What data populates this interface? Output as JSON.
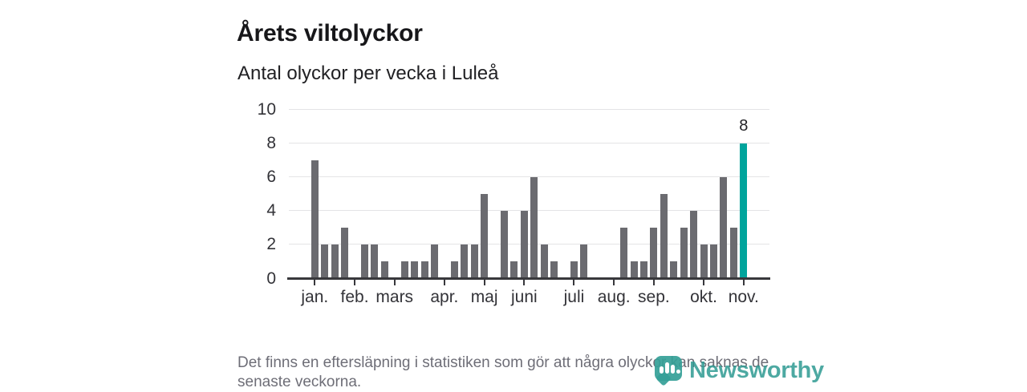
{
  "header": {
    "title": "Årets viltolyckor",
    "subtitle": "Antal olyckor per vecka i Luleå"
  },
  "chart_data": {
    "type": "bar",
    "title": "Årets viltolyckor",
    "subtitle": "Antal olyckor per vecka i Luleå",
    "x_unit": "week of the year, January–November",
    "n_weeks": 44,
    "values": [
      7,
      2,
      2,
      3,
      0,
      2,
      2,
      1,
      0,
      1,
      1,
      1,
      2,
      0,
      1,
      2,
      2,
      5,
      0,
      4,
      1,
      4,
      6,
      2,
      1,
      0,
      1,
      2,
      0,
      0,
      0,
      3,
      1,
      1,
      3,
      5,
      1,
      3,
      4,
      2,
      2,
      6,
      3,
      8
    ],
    "highlight_index": 43,
    "highlight_value_label": "8",
    "x_tick_labels": [
      {
        "week_index": 0,
        "label": "jan."
      },
      {
        "week_index": 4,
        "label": "feb."
      },
      {
        "week_index": 8,
        "label": "mars"
      },
      {
        "week_index": 13,
        "label": "apr."
      },
      {
        "week_index": 17,
        "label": "maj"
      },
      {
        "week_index": 21,
        "label": "juni"
      },
      {
        "week_index": 26,
        "label": "juli"
      },
      {
        "week_index": 30,
        "label": "aug."
      },
      {
        "week_index": 34,
        "label": "sep."
      },
      {
        "week_index": 39,
        "label": "okt."
      },
      {
        "week_index": 43,
        "label": "nov."
      }
    ],
    "y_ticks": [
      0,
      2,
      4,
      6,
      8,
      10
    ],
    "ylim": [
      0,
      10
    ],
    "grid": true,
    "legend": "none",
    "bar_color": "#6b6b70",
    "highlight_color": "#00a49c"
  },
  "footer": {
    "note_line1": "Det finns en eftersläpning i statistiken som gör att några olyckor kan saknas de",
    "note_line2": "senaste veckorna.",
    "brand": "Newsworthy"
  },
  "colors": {
    "accent_teal": "#00a49c",
    "bar_gray": "#6b6b70",
    "text_dark": "#17171a",
    "text_muted": "#6e6e77",
    "gridline": "#e4e4e6",
    "axis": "#38383c"
  }
}
